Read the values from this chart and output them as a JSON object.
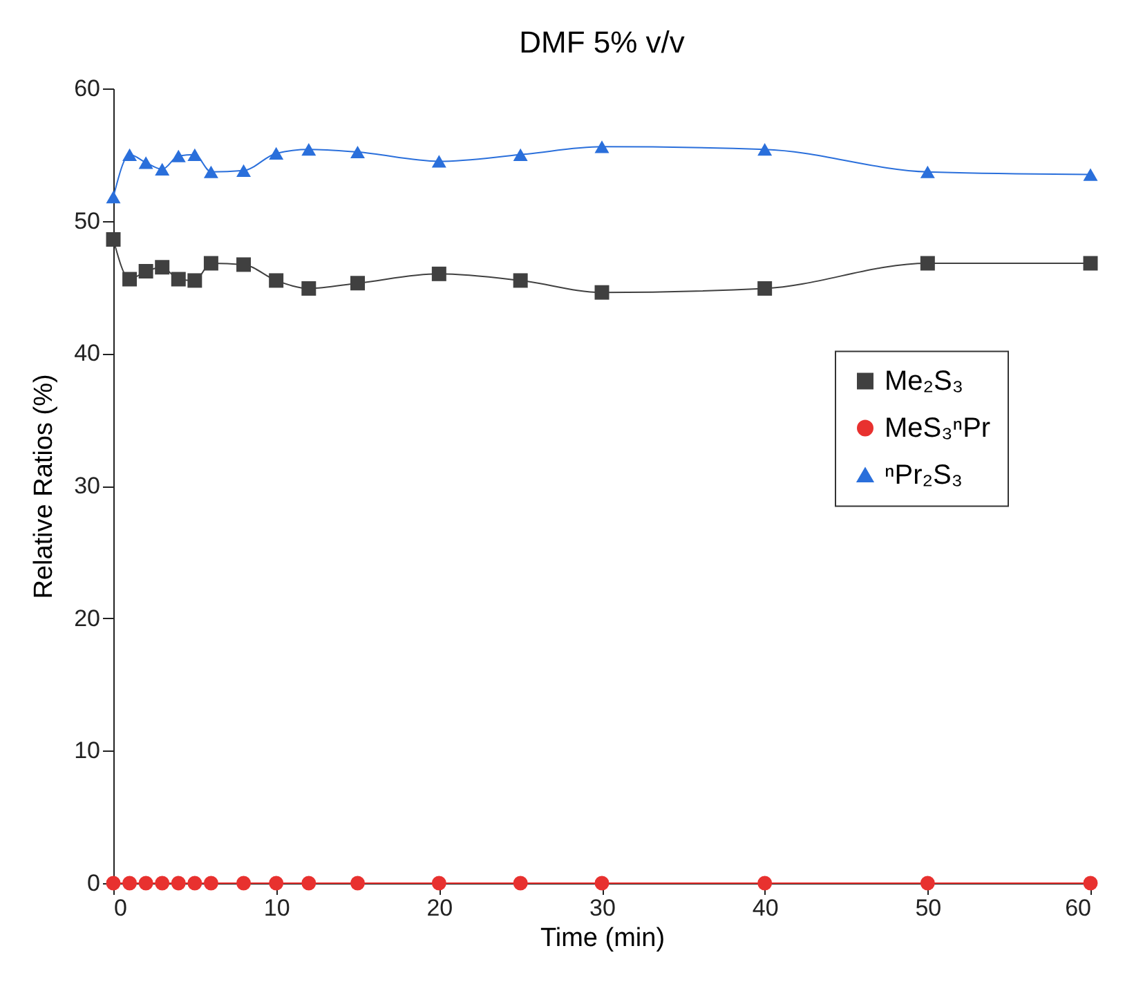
{
  "chart_data": {
    "type": "line",
    "title": "DMF 5% v/v",
    "xlabel": "Time (min)",
    "ylabel": "Relative Ratios (%)",
    "x": [
      0,
      1,
      2,
      3,
      4,
      5,
      6,
      8,
      10,
      12,
      15,
      20,
      25,
      30,
      40,
      50,
      60
    ],
    "series": [
      {
        "name": "Me₂S₃",
        "color": "#404040",
        "marker": "square",
        "values": [
          48.6,
          45.6,
          46.2,
          46.5,
          45.6,
          45.5,
          46.8,
          46.7,
          45.5,
          44.9,
          45.3,
          46.0,
          45.5,
          44.6,
          44.9,
          46.8,
          46.8
        ]
      },
      {
        "name": "MeS₃ⁿPr",
        "color": "#e8312f",
        "marker": "circle",
        "values": [
          0,
          0,
          0,
          0,
          0,
          0,
          0,
          0,
          0,
          0,
          0,
          0,
          0,
          0,
          0,
          0,
          0
        ]
      },
      {
        "name": "ⁿPr₂S₃",
        "color": "#2a6fdb",
        "marker": "triangle",
        "values": [
          51.8,
          55.0,
          54.4,
          53.9,
          54.9,
          55.0,
          53.7,
          53.8,
          55.1,
          55.4,
          55.2,
          54.5,
          55.0,
          55.6,
          55.4,
          53.7,
          53.5
        ]
      }
    ],
    "xlim": [
      0,
      60
    ],
    "xticks": [
      0,
      10,
      20,
      30,
      40,
      50,
      60
    ],
    "ylim": [
      0,
      60
    ],
    "yticks": [
      0,
      10,
      20,
      30,
      40,
      50,
      60
    ],
    "grid": false,
    "legend": "right",
    "line_style": "solid"
  }
}
